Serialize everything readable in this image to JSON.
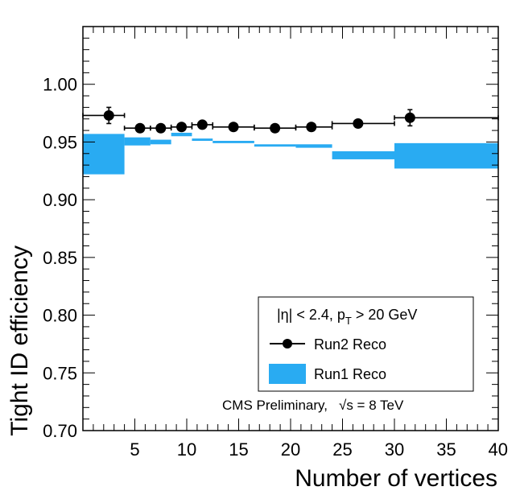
{
  "chart_data": {
    "type": "scatter",
    "title": "",
    "xlabel": "Number of vertices",
    "ylabel": "Tight ID efficiency",
    "xlim": [
      0,
      40
    ],
    "ylim": [
      0.7,
      1.05
    ],
    "x_ticks": [
      5,
      10,
      15,
      20,
      25,
      30,
      35,
      40
    ],
    "x_tick_labels": [
      "5",
      "10",
      "15",
      "20",
      "25",
      "30",
      "35",
      "40"
    ],
    "y_ticks": [
      0.7,
      0.75,
      0.8,
      0.85,
      0.9,
      0.95,
      1.0
    ],
    "y_tick_labels": [
      "0.70",
      "0.75",
      "0.80",
      "0.85",
      "0.90",
      "0.95",
      "1.00"
    ],
    "grid": false,
    "legend_position": "bottom-right",
    "legend": {
      "header_prefix": "|η| < 2.4, p",
      "header_subscript": "T",
      "header_suffix": " > 20 GeV",
      "entries": [
        "Run2 Reco",
        "Run1 Reco"
      ]
    },
    "annotation_prefix": "CMS Preliminary,",
    "annotation_sqrt": "√s = 8 TeV",
    "series": [
      {
        "name": "Run2 Reco",
        "kind": "points",
        "color": "#000000",
        "points": [
          {
            "x": 2.5,
            "xlo": 0,
            "xhi": 4,
            "y": 0.973,
            "err": 0.007
          },
          {
            "x": 5.5,
            "xlo": 4,
            "xhi": 6.5,
            "y": 0.962,
            "err": 0.002
          },
          {
            "x": 7.5,
            "xlo": 6.5,
            "xhi": 8.5,
            "y": 0.962,
            "err": 0.002
          },
          {
            "x": 9.5,
            "xlo": 8.5,
            "xhi": 10.5,
            "y": 0.963,
            "err": 0.002
          },
          {
            "x": 11.5,
            "xlo": 10.5,
            "xhi": 12.5,
            "y": 0.965,
            "err": 0.002
          },
          {
            "x": 14.5,
            "xlo": 12.5,
            "xhi": 16.5,
            "y": 0.963,
            "err": 0.002
          },
          {
            "x": 18.5,
            "xlo": 16.5,
            "xhi": 20.5,
            "y": 0.962,
            "err": 0.002
          },
          {
            "x": 22.0,
            "xlo": 20.5,
            "xhi": 24.0,
            "y": 0.963,
            "err": 0.002
          },
          {
            "x": 26.5,
            "xlo": 24.0,
            "xhi": 30.0,
            "y": 0.966,
            "err": 0.002
          },
          {
            "x": 31.5,
            "xlo": 30.0,
            "xhi": 40.0,
            "y": 0.971,
            "err": 0.007
          }
        ]
      },
      {
        "name": "Run1 Reco",
        "kind": "band",
        "color": "#29abf2",
        "bins": [
          {
            "xlo": 0,
            "xhi": 4,
            "ylo": 0.922,
            "yhi": 0.957
          },
          {
            "xlo": 4,
            "xhi": 6.5,
            "ylo": 0.947,
            "yhi": 0.954
          },
          {
            "xlo": 6.5,
            "xhi": 8.5,
            "ylo": 0.948,
            "yhi": 0.952
          },
          {
            "xlo": 8.5,
            "xhi": 10.5,
            "ylo": 0.955,
            "yhi": 0.958
          },
          {
            "xlo": 10.5,
            "xhi": 12.5,
            "ylo": 0.951,
            "yhi": 0.953
          },
          {
            "xlo": 12.5,
            "xhi": 16.5,
            "ylo": 0.949,
            "yhi": 0.951
          },
          {
            "xlo": 16.5,
            "xhi": 20.5,
            "ylo": 0.946,
            "yhi": 0.948
          },
          {
            "xlo": 20.5,
            "xhi": 24.0,
            "ylo": 0.945,
            "yhi": 0.948
          },
          {
            "xlo": 24.0,
            "xhi": 30.0,
            "ylo": 0.935,
            "yhi": 0.942
          },
          {
            "xlo": 30.0,
            "xhi": 40.0,
            "ylo": 0.927,
            "yhi": 0.949
          }
        ]
      }
    ]
  }
}
